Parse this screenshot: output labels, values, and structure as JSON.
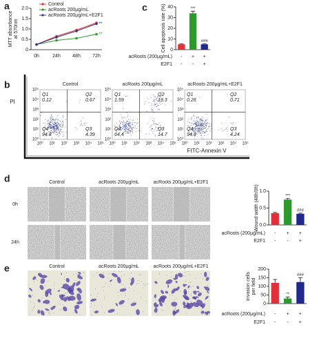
{
  "panel_labels": [
    "a",
    "b",
    "c",
    "d",
    "e"
  ],
  "chart_data": [
    {
      "type": "line",
      "ylabel": [
        "MTT absorbance",
        "at 570nm"
      ],
      "categories": [
        "0h",
        "24h",
        "48h",
        "72h"
      ],
      "ylim": [
        0,
        2
      ],
      "yticks": [
        0,
        0.5,
        {
          "value": 1,
          "label": "1.0"
        },
        1.5,
        {
          "value": 2,
          "label": "2.0"
        }
      ],
      "legend": "top",
      "series": [
        {
          "name": "Control",
          "color": "#e0313b",
          "values": [
            0.25,
            0.65,
            0.95,
            1.3
          ]
        },
        {
          "name": "acRoots 200µg/mL",
          "color": "#2e9a2e",
          "values": [
            0.25,
            0.45,
            0.55,
            0.75
          ],
          "annotation": "**"
        },
        {
          "name": "acRoots 200µg/mL+E2F1",
          "color": "#2b3990",
          "values": [
            0.25,
            0.6,
            0.9,
            1.25
          ],
          "annotation": "**"
        }
      ]
    },
    {
      "type": "bar",
      "ylabel": [
        "Cell apoptosis rate (%)"
      ],
      "values": [
        5,
        34,
        5
      ],
      "errors": [
        0.5,
        2,
        0.5
      ],
      "colors": [
        "#e0313b",
        "#2e9a2e",
        "#1f2a8a"
      ],
      "annotations": [
        null,
        "***",
        "###"
      ],
      "ylim": [
        0,
        40
      ],
      "yticks": [
        0,
        10,
        20,
        30,
        40
      ],
      "conditions": [
        {
          "name": "acRoots (200µg/mL)",
          "signs": [
            "-",
            "+",
            "+"
          ]
        },
        {
          "name": "E2F1",
          "signs": [
            "-",
            "-",
            "+"
          ]
        }
      ]
    },
    {
      "type": "bar",
      "ylabel": [
        "Wound width (48h/0h)"
      ],
      "values": [
        0.35,
        0.75,
        0.33
      ],
      "errors": [
        0.02,
        0.03,
        0.02
      ],
      "colors": [
        "#e0313b",
        "#2e9a2e",
        "#1f2a8a"
      ],
      "annotations": [
        null,
        "***",
        "###"
      ],
      "ylim": [
        0,
        1
      ],
      "yticks": [
        {
          "value": 0,
          "label": "0.0"
        },
        0.5,
        {
          "value": 1,
          "label": "1.0"
        }
      ],
      "conditions": [
        {
          "name": "acRoots (200µg/mL)",
          "signs": [
            "-",
            "+",
            "+"
          ]
        },
        {
          "name": "E2F1",
          "signs": [
            "-",
            "-",
            "+"
          ]
        }
      ]
    },
    {
      "type": "bar",
      "ylabel": [
        "Invasion cells",
        "per field"
      ],
      "values": [
        120,
        30,
        125
      ],
      "errors": [
        20,
        8,
        25
      ],
      "colors": [
        "#e0313b",
        "#2e9a2e",
        "#1f2a8a"
      ],
      "annotations": [
        null,
        "**",
        "###"
      ],
      "ylim": [
        0,
        200
      ],
      "yticks": [
        0,
        50,
        100,
        150,
        200
      ],
      "conditions": [
        {
          "name": "acRoots (200µg/mL)",
          "signs": [
            "-",
            "+",
            "+"
          ]
        },
        {
          "name": "E2F1",
          "signs": [
            "-",
            "-",
            "+"
          ]
        }
      ]
    }
  ],
  "flow": {
    "y_label": "PI",
    "x_label": "FITC-Annexin V",
    "tick_labels": [
      "10⁰",
      "10¹",
      "10²",
      "10³",
      "10⁴",
      "10⁵"
    ],
    "plots": [
      {
        "title": "Control",
        "quadrants": [
          {
            "name": "Q1",
            "value": "0.12"
          },
          {
            "name": "Q2",
            "value": "0.67"
          },
          {
            "name": "Q3",
            "value": "4.39"
          },
          {
            "name": "Q4",
            "value": "94.8"
          }
        ]
      },
      {
        "title": "acRoots 200µg/mL",
        "quadrants": [
          {
            "name": "Q1",
            "value": "1.59"
          },
          {
            "name": "Q2",
            "value": "19.3"
          },
          {
            "name": "Q3",
            "value": "14.7"
          },
          {
            "name": "Q4",
            "value": "64.4"
          }
        ]
      },
      {
        "title": "acRoots 200µg/mL+E2F1",
        "quadrants": [
          {
            "name": "Q1",
            "value": "0.26"
          },
          {
            "name": "Q2",
            "value": "0.71"
          },
          {
            "name": "Q3",
            "value": "4.24"
          },
          {
            "name": "Q4",
            "value": "94.8"
          }
        ]
      }
    ]
  },
  "wound": {
    "columns": [
      "Control",
      "acRoots 200µg/mL",
      "acRoots 200µg/mL+E2F1"
    ],
    "rows": [
      "0h",
      "24h"
    ]
  },
  "invasion": {
    "columns": [
      "Control",
      "acRoots 200µg/mL",
      "acRoots 200µg/mL+E2F1"
    ]
  }
}
